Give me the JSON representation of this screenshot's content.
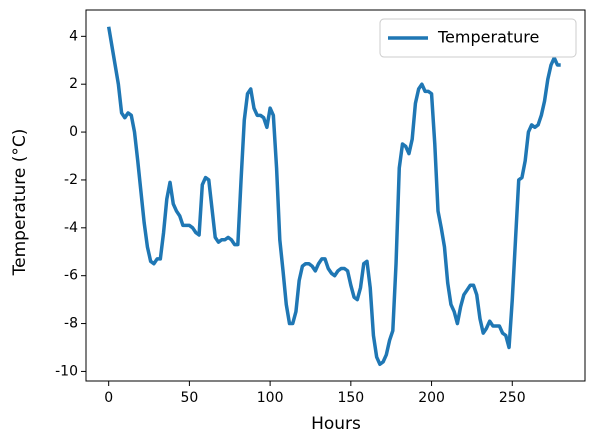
{
  "chart_data": {
    "type": "line",
    "xlabel": "Hours",
    "ylabel": "Temperature (°C)",
    "x": [
      0,
      2,
      4,
      6,
      8,
      10,
      12,
      14,
      16,
      18,
      20,
      22,
      24,
      26,
      28,
      30,
      32,
      34,
      36,
      38,
      40,
      42,
      44,
      46,
      48,
      50,
      52,
      54,
      56,
      58,
      60,
      62,
      64,
      66,
      68,
      70,
      72,
      74,
      76,
      78,
      80,
      82,
      84,
      86,
      88,
      90,
      92,
      94,
      96,
      98,
      100,
      102,
      104,
      106,
      108,
      110,
      112,
      114,
      116,
      118,
      120,
      122,
      124,
      126,
      128,
      130,
      132,
      134,
      136,
      138,
      140,
      142,
      144,
      146,
      148,
      150,
      152,
      154,
      156,
      158,
      160,
      162,
      164,
      166,
      168,
      170,
      172,
      174,
      176,
      178,
      180,
      182,
      184,
      186,
      188,
      190,
      192,
      194,
      196,
      198,
      200,
      202,
      204,
      206,
      208,
      210,
      212,
      214,
      216,
      218,
      220,
      222,
      224,
      226,
      228,
      230,
      232,
      234,
      236,
      238,
      240,
      242,
      244,
      246,
      248,
      250,
      252,
      254,
      256,
      258,
      260,
      262,
      264,
      266,
      268,
      270,
      272,
      274,
      276,
      278,
      280
    ],
    "series": [
      {
        "name": "Temperature",
        "color": "#1f77b4",
        "values": [
          4.4,
          3.6,
          2.8,
          2.0,
          0.8,
          0.6,
          0.8,
          0.7,
          0.0,
          -1.2,
          -2.5,
          -3.8,
          -4.8,
          -5.4,
          -5.5,
          -5.3,
          -5.3,
          -4.2,
          -2.8,
          -2.1,
          -3.0,
          -3.3,
          -3.5,
          -3.9,
          -3.9,
          -3.9,
          -4.0,
          -4.2,
          -4.3,
          -2.2,
          -1.9,
          -2.0,
          -3.2,
          -4.4,
          -4.6,
          -4.5,
          -4.5,
          -4.4,
          -4.5,
          -4.7,
          -4.7,
          -2.0,
          0.5,
          1.6,
          1.8,
          1.0,
          0.7,
          0.7,
          0.6,
          0.2,
          1.0,
          0.7,
          -1.5,
          -4.5,
          -5.8,
          -7.2,
          -8.0,
          -8.0,
          -7.5,
          -6.2,
          -5.6,
          -5.5,
          -5.5,
          -5.6,
          -5.8,
          -5.5,
          -5.3,
          -5.3,
          -5.7,
          -5.9,
          -6.0,
          -5.8,
          -5.7,
          -5.7,
          -5.8,
          -6.4,
          -6.9,
          -7.0,
          -6.5,
          -5.5,
          -5.4,
          -6.5,
          -8.5,
          -9.4,
          -9.7,
          -9.6,
          -9.3,
          -8.7,
          -8.3,
          -5.5,
          -1.5,
          -0.5,
          -0.6,
          -0.9,
          -0.3,
          1.2,
          1.8,
          2.0,
          1.7,
          1.7,
          1.6,
          -0.5,
          -3.3,
          -4.0,
          -4.8,
          -6.3,
          -7.2,
          -7.5,
          -8.0,
          -7.3,
          -6.8,
          -6.6,
          -6.4,
          -6.4,
          -6.8,
          -7.8,
          -8.4,
          -8.2,
          -7.9,
          -8.1,
          -8.1,
          -8.1,
          -8.4,
          -8.5,
          -9.0,
          -7.0,
          -4.5,
          -2.0,
          -1.9,
          -1.2,
          0.0,
          0.3,
          0.2,
          0.3,
          0.7,
          1.3,
          2.2,
          2.8,
          3.1,
          2.8,
          2.8
        ]
      }
    ],
    "xlim": [
      -14.05,
      295.05
    ],
    "xticks": [
      0,
      50,
      100,
      150,
      200,
      250
    ],
    "ylim": [
      -10.4,
      5.1
    ],
    "yticks": [
      -10,
      -8,
      -6,
      -4,
      -2,
      0,
      2,
      4
    ],
    "legend": "upper right"
  }
}
